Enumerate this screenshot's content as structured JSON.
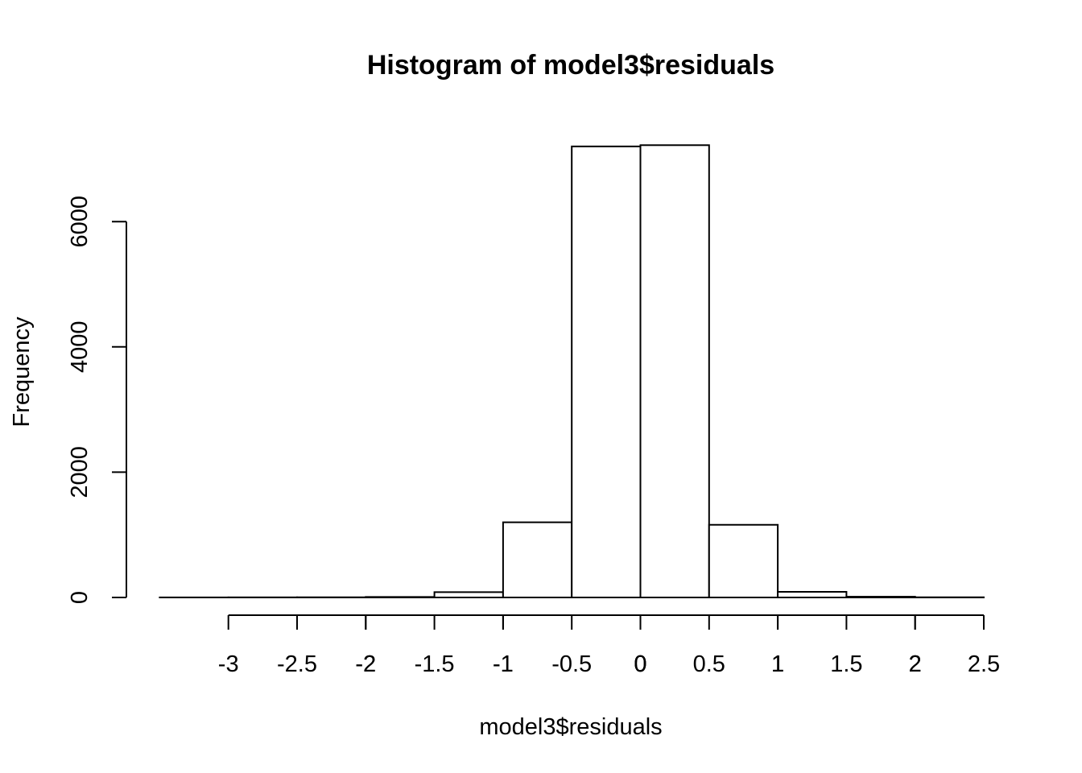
{
  "chart_data": {
    "type": "bar",
    "title": "Histogram of model3$residuals",
    "xlabel": "model3$residuals",
    "ylabel": "Frequency",
    "bins": [
      {
        "from": -3.5,
        "to": -3.0,
        "count": 1
      },
      {
        "from": -3.0,
        "to": -2.5,
        "count": 2
      },
      {
        "from": -2.5,
        "to": -2.0,
        "count": 3
      },
      {
        "from": -2.0,
        "to": -1.5,
        "count": 8
      },
      {
        "from": -1.5,
        "to": -1.0,
        "count": 85
      },
      {
        "from": -1.0,
        "to": -0.5,
        "count": 1200
      },
      {
        "from": -0.5,
        "to": 0.0,
        "count": 7200
      },
      {
        "from": 0.0,
        "to": 0.5,
        "count": 7220
      },
      {
        "from": 0.5,
        "to": 1.0,
        "count": 1160
      },
      {
        "from": 1.0,
        "to": 1.5,
        "count": 90
      },
      {
        "from": 1.5,
        "to": 2.0,
        "count": 12
      },
      {
        "from": 2.0,
        "to": 2.5,
        "count": 3
      }
    ],
    "yticks": [
      0,
      2000,
      4000,
      6000
    ],
    "ytick_labels": [
      "0",
      "2000",
      "4000",
      "6000"
    ],
    "xaxes": [
      {
        "ticks": [
          -3,
          -2.5,
          -2,
          -1.5,
          -1,
          -0.5,
          0,
          0.5,
          1,
          1.5,
          2,
          2.5
        ],
        "labels": [
          "-3",
          "-2.5",
          "-2",
          "-1.5",
          "-1",
          "-0.5",
          "0",
          "0.5",
          "1",
          "1.5",
          "2",
          "2.5"
        ]
      },
      {
        "ticks": [
          -2,
          -1,
          0,
          1,
          2
        ],
        "labels": [
          "-2",
          "-1",
          "0",
          "1",
          "2"
        ]
      },
      {
        "ticks": [
          0
        ],
        "labels": [
          "0"
        ]
      }
    ],
    "xlim": [
      -3.5,
      2.5
    ],
    "ylim": [
      0,
      7220
    ],
    "grid": false,
    "legend": "none"
  }
}
